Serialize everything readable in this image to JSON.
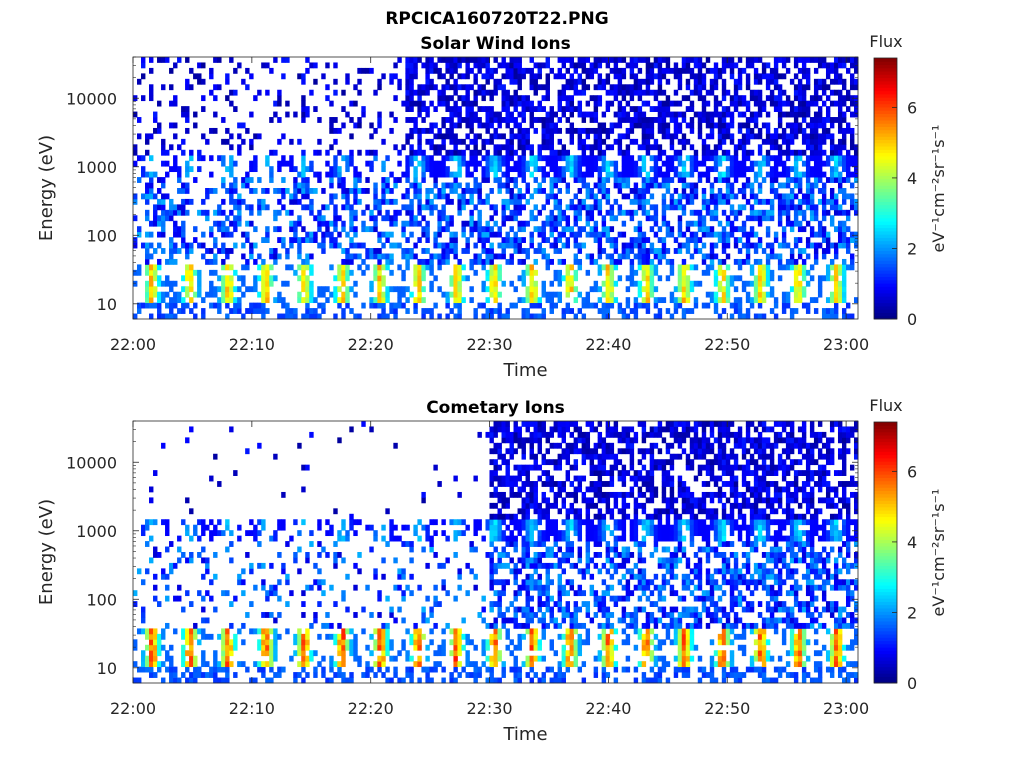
{
  "figure": {
    "title": "RPCICA160720T22.PNG"
  },
  "colorbar": {
    "label": "Flux",
    "unit_label": "eV⁻¹cm⁻²sr⁻¹s⁻¹",
    "ticks": [
      "0",
      "2",
      "4",
      "6"
    ],
    "range": [
      0,
      7.4
    ],
    "colormap": "jet"
  },
  "chart_data": [
    {
      "type": "heatmap",
      "title": "Solar Wind Ions",
      "xlabel": "Time",
      "ylabel": "Energy (eV)",
      "x_range": [
        "22:00",
        "23:01"
      ],
      "x_ticks": [
        "22:00",
        "22:10",
        "22:20",
        "22:30",
        "22:40",
        "22:50",
        "23:00"
      ],
      "y_scale": "log",
      "y_range": [
        6,
        40000
      ],
      "y_ticks": [
        "10",
        "100",
        "1000",
        "10000"
      ],
      "z_label": "Flux",
      "z_range": [
        0,
        7.4
      ],
      "features": {
        "low_energy_band_eV": [
          10,
          40
        ],
        "low_energy_peak_flux": 5.5,
        "band_1000eV_flux": 3.0,
        "period_minutes": 3.2,
        "high_energy_fill_starts": "22:23"
      }
    },
    {
      "type": "heatmap",
      "title": "Cometary Ions",
      "xlabel": "Time",
      "ylabel": "Energy (eV)",
      "x_range": [
        "22:00",
        "23:01"
      ],
      "x_ticks": [
        "22:00",
        "22:10",
        "22:20",
        "22:30",
        "22:40",
        "22:50",
        "23:00"
      ],
      "y_scale": "log",
      "y_range": [
        6,
        40000
      ],
      "y_ticks": [
        "10",
        "100",
        "1000",
        "10000"
      ],
      "z_label": "Flux",
      "z_range": [
        0,
        7.4
      ],
      "features": {
        "low_energy_band_eV": [
          10,
          40
        ],
        "low_energy_peak_flux": 6.5,
        "band_1000eV_flux": 3.0,
        "period_minutes": 3.2,
        "high_energy_fill_starts": "22:30"
      }
    }
  ]
}
